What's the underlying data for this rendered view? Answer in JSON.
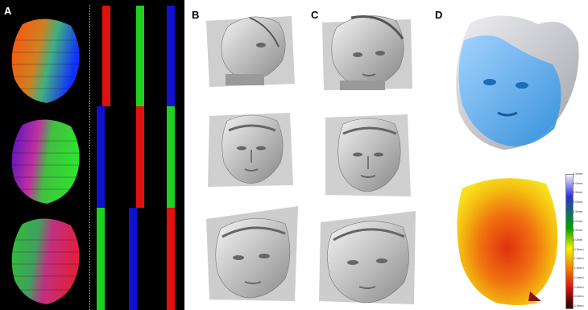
{
  "panel_labels": {
    "a": "A",
    "b": "B",
    "c": "C",
    "d": "D"
  },
  "colors": {
    "red": "#e01010",
    "green": "#20d020",
    "blue": "#1010d0",
    "panel_a_bg": "#000000"
  },
  "colorbar": {
    "ticks": [
      "3.5mm",
      "3.0mm",
      "2.5mm",
      "2.0mm",
      "1.5mm",
      "1.0mm",
      "0.5mm",
      "0.0mm",
      "-0.5mm",
      "-1.0mm",
      "-1.5mm",
      "-2.0mm",
      "-2.5mm",
      "-3.0mm",
      "-3.5mm"
    ]
  }
}
